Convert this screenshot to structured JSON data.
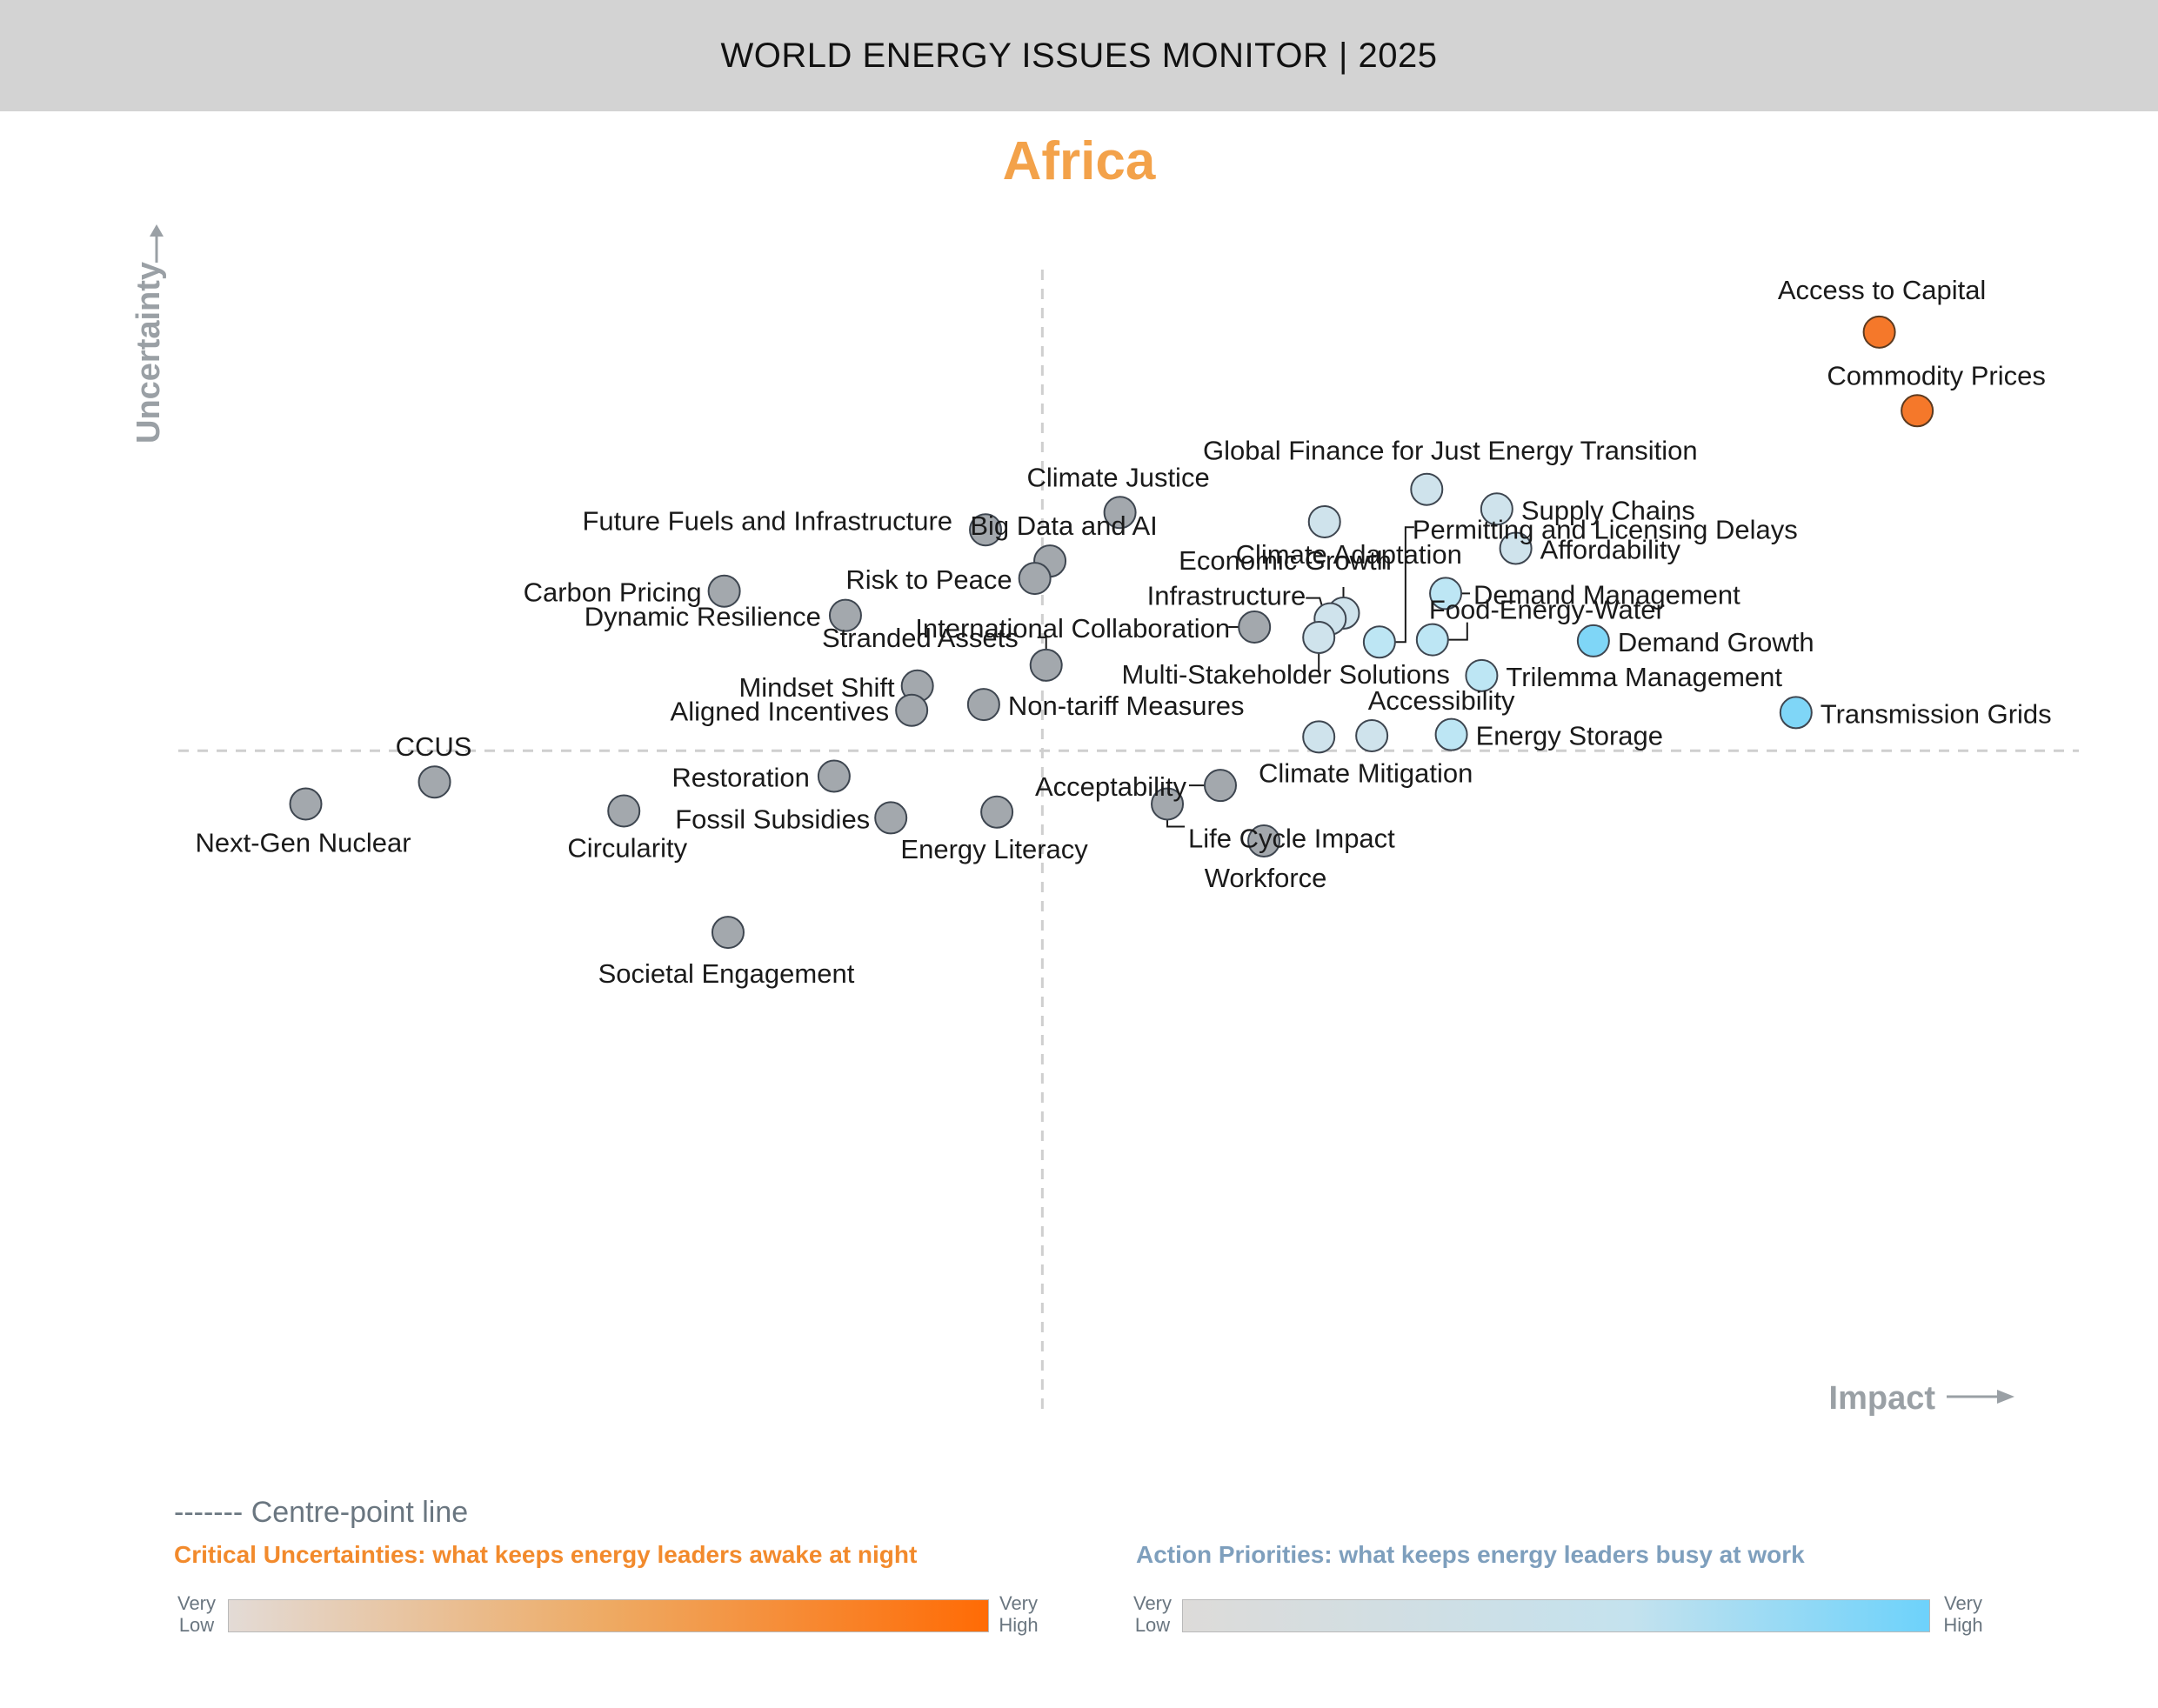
{
  "header": {
    "title": "WORLD ENERGY ISSUES MONITOR | 2025"
  },
  "region": "Africa",
  "legend": {
    "centre_line": "------- Centre-point line",
    "critical": "Critical Uncertainties: what keeps energy leaders awake at night",
    "action": "Action Priorities: what keeps energy leaders busy at work",
    "scale_low_1": "Very",
    "scale_low_2": "Low",
    "scale_high_1": "Very",
    "scale_high_2": "High",
    "critical_colors": [
      "#e3dbd6",
      "#eeaa63",
      "#ff6b05"
    ],
    "action_colors": [
      "#dddbd9",
      "#c4e2ee",
      "#6dd2fb"
    ]
  },
  "chart_data": {
    "type": "scatter",
    "xlabel": "Impact",
    "ylabel": "Uncertainty",
    "xlim": [
      0,
      100
    ],
    "ylim": [
      0,
      100
    ],
    "centre": {
      "x": 45.4,
      "y": 58.4
    },
    "grid": false,
    "colors": {
      "critical": "#f5782a",
      "action_light": "#cfe3ec",
      "action_mid": "#bde6f4",
      "action_strong": "#7fd6f7",
      "neutral": "#a3a8ad"
    },
    "points": [
      {
        "name": "Access to Capital",
        "x": 89.6,
        "y": 94.6,
        "category": "critical"
      },
      {
        "name": "Commodity Prices",
        "x": 91.6,
        "y": 87.8,
        "category": "critical"
      },
      {
        "name": "Global Finance for Just Energy Transition",
        "x": 65.7,
        "y": 81.0,
        "category": "action_light"
      },
      {
        "name": "Climate Justice",
        "x": 49.5,
        "y": 79.0,
        "category": "neutral"
      },
      {
        "name": "Supply Chains",
        "x": 69.4,
        "y": 79.3,
        "category": "action_light"
      },
      {
        "name": "Climate Adaptation",
        "x": 60.3,
        "y": 78.2,
        "category": "action_light"
      },
      {
        "name": "Future Fuels and Infrastructure",
        "x": 42.4,
        "y": 77.5,
        "category": "neutral"
      },
      {
        "name": "Affordability",
        "x": 70.4,
        "y": 75.9,
        "category": "action_light"
      },
      {
        "name": "Big Data and AI",
        "x": 45.8,
        "y": 74.8,
        "category": "neutral"
      },
      {
        "name": "Risk to Peace",
        "x": 45.0,
        "y": 73.3,
        "category": "neutral"
      },
      {
        "name": "Carbon Pricing",
        "x": 28.6,
        "y": 72.2,
        "category": "neutral"
      },
      {
        "name": "Demand Management",
        "x": 66.7,
        "y": 72.0,
        "category": "action_mid"
      },
      {
        "name": "Economic Growth",
        "x": 61.3,
        "y": 70.3,
        "category": "action_light"
      },
      {
        "name": "Infrastructure",
        "x": 60.6,
        "y": 69.8,
        "category": "action_light"
      },
      {
        "name": "Dynamic Resilience",
        "x": 35.0,
        "y": 70.1,
        "category": "neutral"
      },
      {
        "name": "International Collaboration",
        "x": 56.6,
        "y": 69.1,
        "category": "neutral"
      },
      {
        "name": "Multi-Stakeholder Solutions",
        "x": 60.0,
        "y": 68.2,
        "category": "action_light"
      },
      {
        "name": "Permitting and Licensing Delays",
        "x": 63.2,
        "y": 67.8,
        "category": "action_mid"
      },
      {
        "name": "Food-Energy-Water",
        "x": 66.0,
        "y": 68.0,
        "category": "action_mid"
      },
      {
        "name": "Demand Growth",
        "x": 74.5,
        "y": 67.9,
        "category": "action_strong"
      },
      {
        "name": "Stranded Assets",
        "x": 45.6,
        "y": 65.8,
        "category": "neutral"
      },
      {
        "name": "Trilemma Management",
        "x": 68.6,
        "y": 64.9,
        "category": "action_mid"
      },
      {
        "name": "Mindset Shift",
        "x": 38.8,
        "y": 64.0,
        "category": "neutral"
      },
      {
        "name": "Aligned Incentives",
        "x": 38.5,
        "y": 61.9,
        "category": "neutral"
      },
      {
        "name": "Non-tariff Measures",
        "x": 42.3,
        "y": 62.4,
        "category": "neutral"
      },
      {
        "name": "Transmission Grids",
        "x": 85.2,
        "y": 61.7,
        "category": "action_strong"
      },
      {
        "name": "Accessibility",
        "x": 62.8,
        "y": 59.7,
        "category": "action_light"
      },
      {
        "name": "Climate Mitigation",
        "x": 60.0,
        "y": 59.6,
        "category": "action_light"
      },
      {
        "name": "Energy Storage",
        "x": 67.0,
        "y": 59.8,
        "category": "action_mid"
      },
      {
        "name": "CCUS",
        "x": 13.3,
        "y": 55.7,
        "category": "neutral"
      },
      {
        "name": "Restoration",
        "x": 34.4,
        "y": 56.2,
        "category": "neutral"
      },
      {
        "name": "Acceptability",
        "x": 54.8,
        "y": 55.4,
        "category": "neutral"
      },
      {
        "name": "Next-Gen Nuclear",
        "x": 6.5,
        "y": 53.8,
        "category": "neutral"
      },
      {
        "name": "Life Cycle Impact",
        "x": 52.0,
        "y": 53.8,
        "category": "neutral"
      },
      {
        "name": "Circularity",
        "x": 23.3,
        "y": 53.2,
        "category": "neutral"
      },
      {
        "name": "Energy Literacy",
        "x": 43.0,
        "y": 53.1,
        "category": "neutral"
      },
      {
        "name": "Fossil Subsidies",
        "x": 37.4,
        "y": 52.6,
        "category": "neutral"
      },
      {
        "name": "Workforce",
        "x": 57.1,
        "y": 50.6,
        "category": "neutral"
      },
      {
        "name": "Societal Engagement",
        "x": 28.8,
        "y": 42.7,
        "category": "neutral"
      }
    ]
  }
}
